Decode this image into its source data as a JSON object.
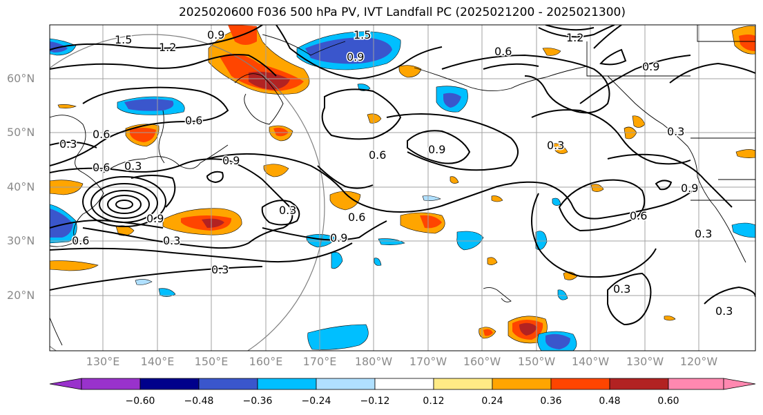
{
  "title": "2025020600 F036 500 hPa PV, IVT Landfall PC (2025021200 - 2025021300)",
  "lat_labels": [
    "60°N",
    "50°N",
    "40°N",
    "30°N",
    "20°N"
  ],
  "lon_labels": [
    "130°E",
    "140°E",
    "150°E",
    "160°E",
    "170°E",
    "180°W",
    "170°W",
    "160°W",
    "150°W",
    "140°W",
    "130°W",
    "120°W"
  ],
  "contour_labels": [
    "1.5",
    "1.2",
    "0.9",
    "1.5",
    "1.2",
    "0.9",
    "0.6",
    "0.6",
    "0.6",
    "0.3",
    "0.6",
    "0.3",
    "0.9",
    "0.9",
    "0.6",
    "0.9",
    "0.3",
    "0.3",
    "0.3",
    "0.6",
    "0.9",
    "0.6",
    "0.9",
    "0.3",
    "0.3",
    "0.3",
    "0.3",
    "0.3",
    "0.9",
    "0.6"
  ],
  "colorbar": {
    "ticks": [
      "−0.60",
      "−0.48",
      "−0.36",
      "−0.24",
      "−0.12",
      "0.12",
      "0.24",
      "0.36",
      "0.48",
      "0.60"
    ],
    "colors": [
      "#9932cc",
      "#00008b",
      "#3a56cc",
      "#00bfff",
      "#b0e0ff",
      "#ffffff",
      "#ffeb85",
      "#ffa500",
      "#ff4500",
      "#b22222",
      "#ff88b0"
    ]
  },
  "colors": {
    "grid": "#a0a0a0",
    "contour": "#000000",
    "axis_label": "#8a8a8a"
  }
}
